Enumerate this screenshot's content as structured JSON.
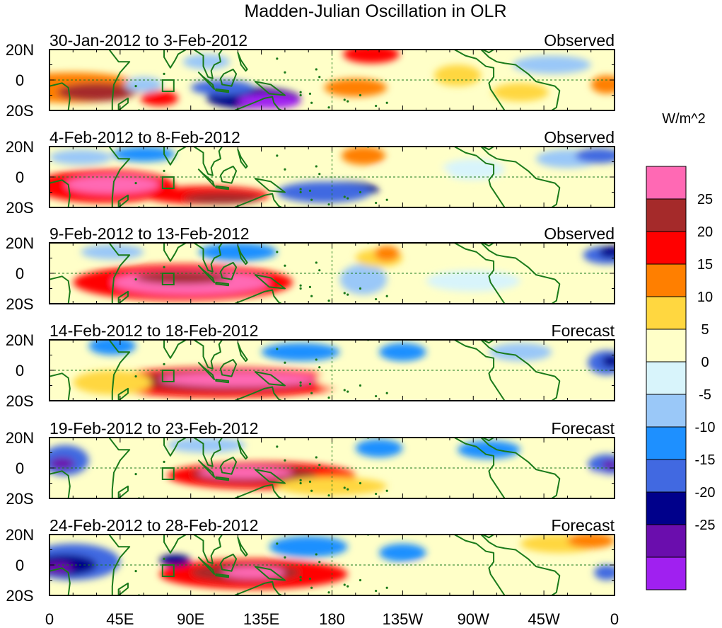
{
  "title": "Madden-Julian Oscillation in OLR",
  "units_label": "W/m^2",
  "colors": {
    "land_outline": "#1a7a1a",
    "reference_line": "#1a7a1a",
    "scale": [
      "#a020f0",
      "#6a0dad",
      "#00008b",
      "#4169e1",
      "#1e90ff",
      "#9ac8f8",
      "#d8f4fb",
      "#ffffc8",
      "#ffd740",
      "#ff7f00",
      "#ff0000",
      "#a52a2a",
      "#ff69b4"
    ]
  },
  "chart_data": {
    "type": "heatmap",
    "title": "Madden-Julian Oscillation in OLR",
    "variable": "OLR anomaly",
    "units": "W/m^2",
    "x_ticks": [
      "0",
      "45E",
      "90E",
      "135E",
      "180",
      "135W",
      "90W",
      "45W",
      "0"
    ],
    "y_ticks": [
      "20N",
      "0",
      "20S"
    ],
    "colorbar": {
      "labels": [
        "25",
        "20",
        "15",
        "10",
        "5",
        "0",
        "-5",
        "-10",
        "-15",
        "-20",
        "-25"
      ],
      "levels": [
        25,
        20,
        15,
        10,
        5,
        0,
        -5,
        -10,
        -15,
        -20,
        -25
      ]
    },
    "panels": [
      {
        "period": "30-Jan-2012 to 3-Feb-2012",
        "type": "Observed"
      },
      {
        "period": "4-Feb-2012 to 8-Feb-2012",
        "type": "Observed"
      },
      {
        "period": "9-Feb-2012 to 13-Feb-2012",
        "type": "Observed"
      },
      {
        "period": "14-Feb-2012 to 18-Feb-2012",
        "type": "Forecast"
      },
      {
        "period": "19-Feb-2012 to 23-Feb-2012",
        "type": "Forecast"
      },
      {
        "period": "24-Feb-2012 to 28-Feb-2012",
        "type": "Forecast"
      }
    ]
  }
}
